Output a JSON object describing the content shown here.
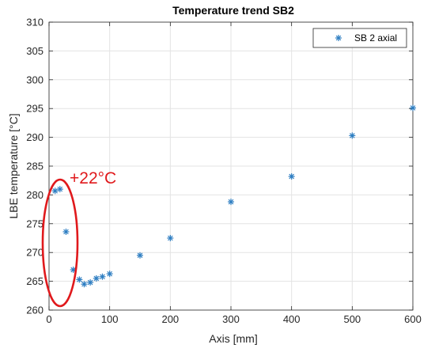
{
  "chart_data": {
    "type": "scatter",
    "title": "Temperature trend SB2",
    "xlabel": "Axis [mm]",
    "ylabel": "LBE temperature [°C]",
    "xlim": [
      0,
      600
    ],
    "ylim": [
      260,
      310
    ],
    "xticks": [
      0,
      100,
      200,
      300,
      400,
      500,
      600
    ],
    "yticks": [
      260,
      265,
      270,
      275,
      280,
      285,
      290,
      295,
      300,
      305,
      310
    ],
    "grid": true,
    "legend_position": "top-right",
    "marker": "asterisk",
    "series": [
      {
        "name": "SB 2 axial",
        "color": "#2e7ec2",
        "x": [
          10,
          18,
          28,
          40,
          50,
          58,
          68,
          78,
          88,
          100,
          150,
          200,
          300,
          400,
          500,
          600
        ],
        "y": [
          280.7,
          281.0,
          273.6,
          267.0,
          265.3,
          264.5,
          264.8,
          265.5,
          265.8,
          266.3,
          269.5,
          272.5,
          278.8,
          283.2,
          290.3,
          295.1
        ]
      }
    ],
    "annotations": [
      {
        "type": "text",
        "text": "+22°C",
        "color": "#e0191c"
      },
      {
        "type": "ellipse",
        "label": "highlight-ellipse",
        "color": "#e0191c"
      }
    ]
  }
}
